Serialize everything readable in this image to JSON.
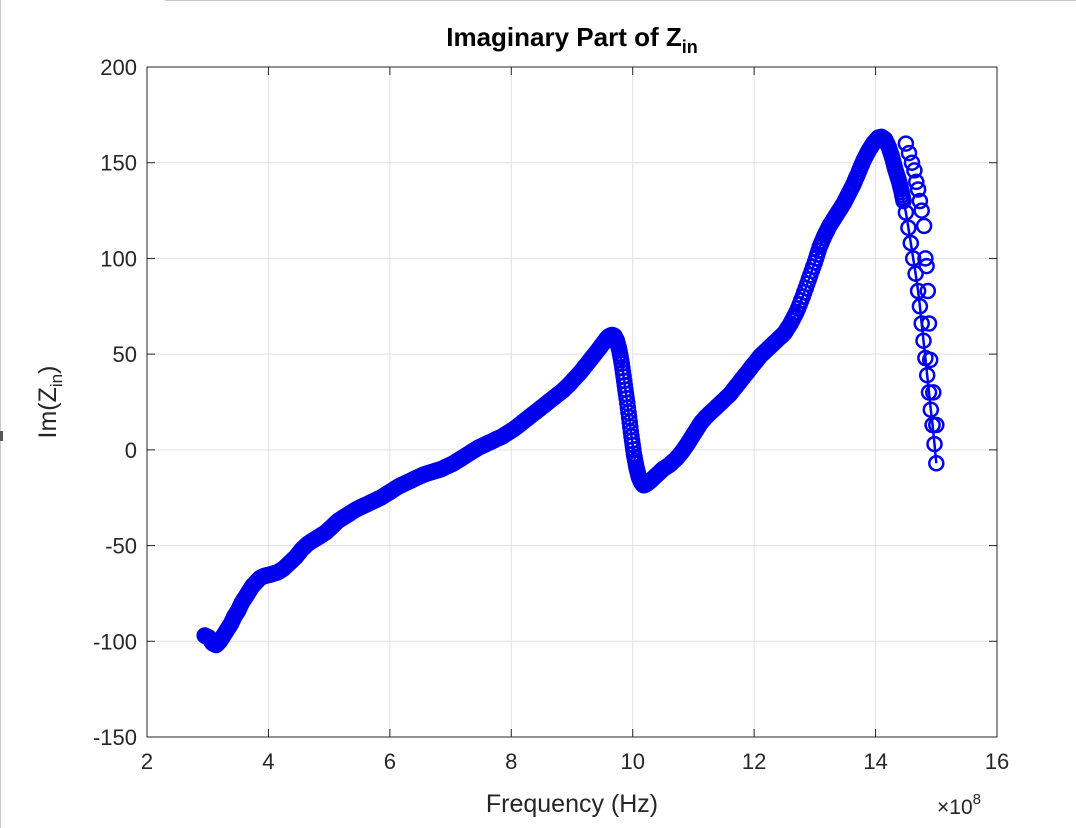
{
  "chart_data": {
    "type": "line",
    "title": "Imaginary Part of Z",
    "title_subscript": "in",
    "xlabel": "Frequency (Hz)",
    "ylabel": "Im(Z",
    "ylabel_subscript": "in",
    "ylabel_suffix": ")",
    "x_exponent_label": "×10",
    "x_exponent_power": "8",
    "xlim": [
      2,
      16
    ],
    "ylim": [
      -150,
      200
    ],
    "xticks": [
      2,
      4,
      6,
      8,
      10,
      12,
      14,
      16
    ],
    "xtick_labels": [
      "2",
      "4",
      "6",
      "8",
      "10",
      "12",
      "14",
      "16"
    ],
    "yticks": [
      -150,
      -100,
      -50,
      0,
      50,
      100,
      150,
      200
    ],
    "ytick_labels": [
      "-150",
      "-100",
      "-50",
      "0",
      "50",
      "100",
      "150",
      "200"
    ],
    "grid": true,
    "marker": "circle",
    "line_color": "#0000ee",
    "series": [
      {
        "x": [
          2.95,
          3.02,
          3.08,
          3.14,
          3.2,
          3.26,
          3.32,
          3.38,
          3.44,
          3.5,
          3.56,
          3.62,
          3.68,
          3.74,
          3.8,
          3.86,
          3.92,
          3.98,
          4.05,
          4.15,
          4.25,
          4.35,
          4.45,
          4.55,
          4.65,
          4.75,
          4.85,
          4.95,
          5.05,
          5.15,
          5.25,
          5.35,
          5.45,
          5.55,
          5.65,
          5.75,
          5.85,
          5.95,
          6.05,
          6.15,
          6.25,
          6.35,
          6.45,
          6.55,
          6.65,
          6.75,
          6.85,
          6.95,
          7.05,
          7.15,
          7.25,
          7.35,
          7.45,
          7.55,
          7.65,
          7.75,
          7.85,
          7.95,
          8.05,
          8.15,
          8.25,
          8.35,
          8.45,
          8.55,
          8.65,
          8.75,
          8.85,
          8.95,
          9.05,
          9.15,
          9.25,
          9.35,
          9.45,
          9.52,
          9.58,
          9.62,
          9.66,
          9.7,
          9.74,
          9.78,
          9.82,
          9.86,
          9.9,
          9.94,
          9.98,
          10.02,
          10.06,
          10.1,
          10.14,
          10.18,
          10.22,
          10.26,
          10.3,
          10.35,
          10.4,
          10.45,
          10.5,
          10.55,
          10.6,
          10.65,
          10.72,
          10.8,
          10.88,
          10.96,
          11.04,
          11.12,
          11.2,
          11.3,
          11.4,
          11.5,
          11.6,
          11.7,
          11.8,
          11.9,
          12.0,
          12.1,
          12.2,
          12.3,
          12.4,
          12.5,
          12.6,
          12.7,
          12.8,
          12.9,
          13.0,
          13.08,
          13.16,
          13.24,
          13.32,
          13.4,
          13.48,
          13.56,
          13.64,
          13.72,
          13.8,
          13.88,
          13.96,
          14.04,
          14.1,
          14.16,
          14.22,
          14.28,
          14.33,
          14.38,
          14.42,
          14.46,
          14.5,
          14.54,
          14.58,
          14.62,
          14.66,
          14.7,
          14.73,
          14.76,
          14.79,
          14.82,
          14.85,
          14.88,
          14.91,
          14.94,
          14.97,
          15.0
        ],
        "y": [
          -97,
          -98,
          -101,
          -102,
          -100,
          -97,
          -94,
          -91,
          -87,
          -84,
          -80,
          -77,
          -74,
          -71,
          -69,
          -67,
          -66,
          -65.5,
          -65,
          -64,
          -62,
          -59,
          -56,
          -52,
          -49,
          -47,
          -45,
          -43,
          -40,
          -37,
          -35,
          -33,
          -31,
          -29.5,
          -28,
          -26.5,
          -25,
          -23,
          -21,
          -19,
          -17.5,
          -16,
          -14.5,
          -13,
          -12,
          -11,
          -10,
          -8.5,
          -7,
          -5,
          -3,
          -1,
          1,
          2.5,
          4,
          5.5,
          7,
          9,
          11,
          13.5,
          16,
          18.5,
          21,
          23.5,
          26,
          28.5,
          31,
          34,
          37.5,
          41,
          45,
          49,
          53,
          56,
          58.5,
          59.5,
          60,
          59.5,
          57,
          52,
          45,
          36,
          27,
          17,
          7,
          -2,
          -9,
          -14,
          -17,
          -18.5,
          -18,
          -17,
          -16,
          -14.5,
          -13,
          -11.5,
          -10,
          -9,
          -8,
          -6.5,
          -4.5,
          -1.5,
          2,
          6,
          10,
          14,
          17,
          20,
          23,
          26,
          29,
          33,
          37,
          41,
          45,
          49,
          52,
          55,
          58,
          61,
          66,
          72,
          80,
          89,
          98,
          106,
          112,
          117,
          121,
          125,
          129,
          134,
          139,
          145,
          151,
          156,
          160,
          163,
          163.5,
          162,
          158,
          152,
          146,
          141,
          136,
          130,
          124,
          116,
          108,
          100,
          92,
          83,
          75,
          66,
          57,
          48,
          39,
          30,
          21,
          13,
          3,
          -7
        ],
        "marker_x": [
          14.5,
          14.55,
          14.6,
          14.64,
          14.67,
          14.7,
          14.73,
          14.76,
          14.8,
          14.82,
          14.84,
          14.86,
          14.88,
          14.9,
          14.95,
          15.0
        ],
        "marker_y": [
          160,
          155,
          150,
          146,
          140,
          136,
          130,
          125,
          117,
          100,
          96,
          83,
          66,
          47,
          30,
          13
        ]
      }
    ]
  }
}
